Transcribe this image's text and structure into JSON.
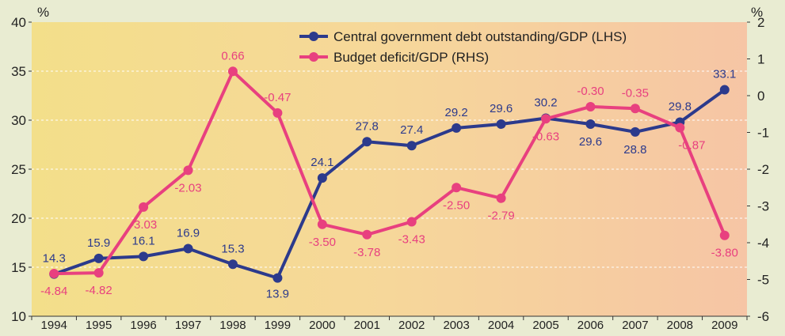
{
  "chart_data": {
    "type": "line",
    "left_axis_unit": "%",
    "right_axis_unit": "%",
    "categories": [
      "1994",
      "1995",
      "1996",
      "1997",
      "1998",
      "1999",
      "2000",
      "2001",
      "2002",
      "2003",
      "2004",
      "2005",
      "2006",
      "2007",
      "2008",
      "2009"
    ],
    "left_axis": {
      "ylim": [
        10,
        40
      ],
      "ticks": [
        "10",
        "15",
        "20",
        "25",
        "30",
        "35",
        "40"
      ]
    },
    "right_axis": {
      "ylim": [
        -6,
        2
      ],
      "ticks": [
        "-6",
        "-5",
        "-4",
        "-3",
        "-2",
        "-1",
        "0",
        "1",
        "2"
      ]
    },
    "grid": true,
    "legend_position": "top-center",
    "series": [
      {
        "name": "Central government debt outstanding/GDP (LHS)",
        "axis": "left",
        "color": "#2c3a8c",
        "values": [
          14.3,
          15.9,
          16.1,
          16.9,
          15.3,
          13.9,
          24.1,
          27.8,
          27.4,
          29.2,
          29.6,
          30.2,
          29.6,
          28.8,
          29.8,
          33.1
        ],
        "labels": [
          "14.3",
          "15.9",
          "16.1",
          "16.9",
          "15.3",
          "13.9",
          "24.1",
          "27.8",
          "27.4",
          "29.2",
          "29.6",
          "30.2",
          "29.6",
          "28.8",
          "29.8",
          "33.1"
        ]
      },
      {
        "name": "Budget deficit/GDP (RHS)",
        "axis": "right",
        "color": "#e8407f",
        "values": [
          -4.84,
          -4.82,
          -3.03,
          -2.03,
          0.66,
          -0.47,
          -3.5,
          -3.78,
          -3.43,
          -2.5,
          -2.79,
          -0.63,
          -0.3,
          -0.35,
          -0.87,
          -3.8
        ],
        "labels": [
          "-4.84",
          "-4.82",
          "-3.03",
          "-2.03",
          "0.66",
          "-0.47",
          "-3.50",
          "-3.78",
          "-3.43",
          "-2.50",
          "-2.79",
          "-0.63",
          "-0.30",
          "-0.35",
          "-0.87",
          "-3.80"
        ]
      }
    ]
  }
}
